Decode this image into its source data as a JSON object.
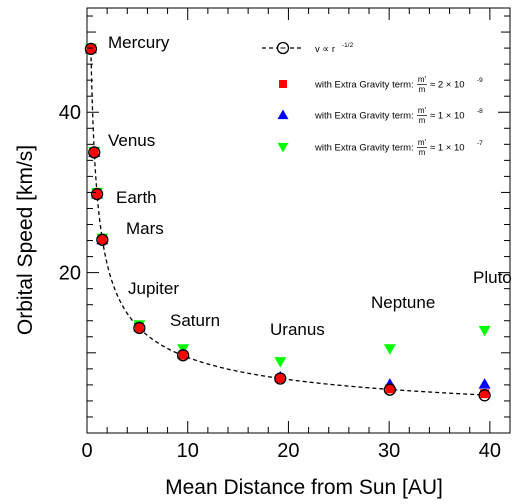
{
  "chart_data": {
    "type": "scatter",
    "xlabel": "Mean Distance from Sun [AU]",
    "ylabel": "Orbital Speed [km/s]",
    "xlim": [
      0,
      42
    ],
    "ylim": [
      0,
      53
    ],
    "x_ticks": [
      "0",
      "10",
      "20",
      "30",
      "40"
    ],
    "y_ticks": [
      "20",
      "40"
    ],
    "grid": false,
    "legend_position": "top-right",
    "categories": [
      "Mercury",
      "Venus",
      "Earth",
      "Mars",
      "Jupiter",
      "Saturn",
      "Uranus",
      "Neptune",
      "Pluto"
    ],
    "x": [
      0.39,
      0.72,
      1.0,
      1.52,
      5.2,
      9.54,
      19.19,
      30.07,
      39.48
    ],
    "series": [
      {
        "name": "v ∝ r^-1/2",
        "marker": "open-circle",
        "color": "#000000",
        "values": [
          47.9,
          35.0,
          29.8,
          24.1,
          13.1,
          9.7,
          6.8,
          5.4,
          4.7
        ]
      },
      {
        "name": "with Extra Gravity term: m'/m ≈ 2 × 10^-9",
        "marker": "square",
        "color": "#ff0000",
        "values": [
          47.9,
          35.0,
          29.8,
          24.1,
          13.1,
          9.7,
          6.8,
          5.5,
          4.9
        ]
      },
      {
        "name": "with Extra Gravity term: m'/m ≈ 1 × 10^-8",
        "marker": "triangle-up",
        "color": "#0000ff",
        "values": [
          47.9,
          35.0,
          29.8,
          24.1,
          13.2,
          9.8,
          7.0,
          6.1,
          6.1
        ]
      },
      {
        "name": "with Extra Gravity term: m'/m ≈ 1 × 10^-7",
        "marker": "triangle-down",
        "color": "#00ff00",
        "values": [
          48.0,
          35.1,
          30.0,
          24.3,
          13.5,
          10.5,
          8.9,
          10.5,
          12.8
        ]
      }
    ],
    "fit_curve": {
      "name": "v ∝ r^-1/2",
      "coefficient": 29.8,
      "exponent": -0.5,
      "style": "dashed"
    },
    "legend": [
      {
        "text": "v ∝ r",
        "sup": "-1/2"
      },
      {
        "text": "with Extra Gravity term:",
        "num": "m'",
        "den": "m",
        "approx": "≈ 2 × 10",
        "sup": "-9"
      },
      {
        "text": "with Extra Gravity term:",
        "num": "m'",
        "den": "m",
        "approx": "≈ 1 × 10",
        "sup": "-8"
      },
      {
        "text": "with Extra Gravity term:",
        "num": "m'",
        "den": "m",
        "approx": "≈ 1 × 10",
        "sup": "-7"
      }
    ]
  }
}
